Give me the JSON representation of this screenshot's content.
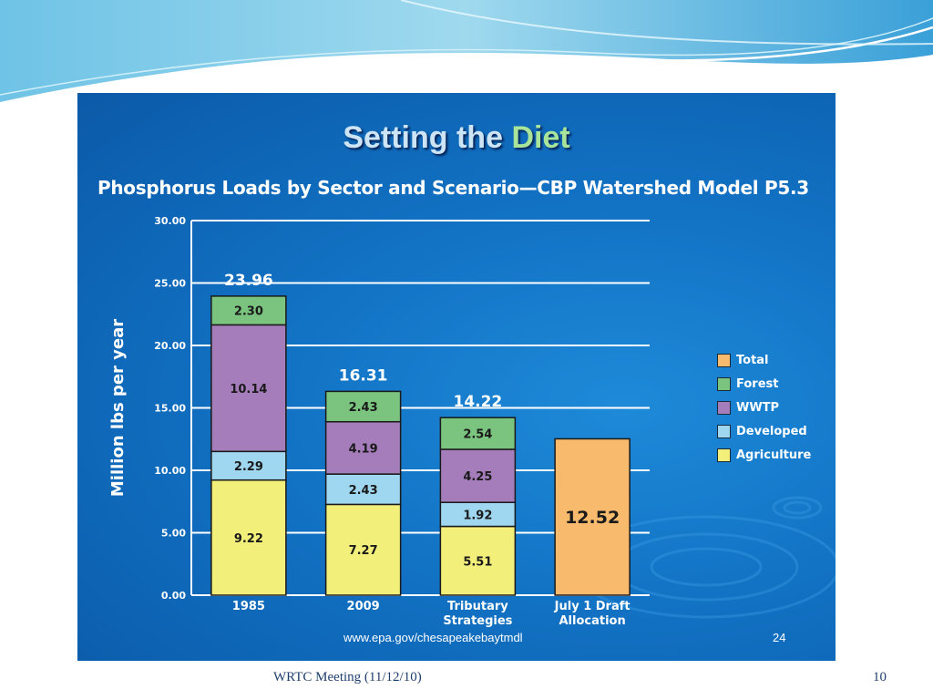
{
  "slide": {
    "title_prefix": "Setting the ",
    "title_accent": "Diet",
    "source_url": "www.epa.gov/chesapeakebaytmdl",
    "inner_page": "24",
    "footer": "WRTC Meeting  (11/12/10)",
    "slide_number": "10"
  },
  "chart_data": {
    "type": "bar",
    "stacked": true,
    "title": "Phosphorus Loads by Sector and Scenario—CBP Watershed Model P5.3",
    "xlabel": "",
    "ylabel": "Million lbs per year",
    "ylim": [
      0,
      30
    ],
    "yticks": [
      "0.00",
      "5.00",
      "10.00",
      "15.00",
      "20.00",
      "25.00",
      "30.00"
    ],
    "grid": true,
    "legend_position": "right",
    "categories": [
      [
        "1985"
      ],
      [
        "2009"
      ],
      [
        "Tributary",
        "Strategies"
      ],
      [
        "July 1 Draft",
        "Allocation"
      ]
    ],
    "totals": [
      "23.96",
      "16.31",
      "14.22",
      null
    ],
    "series": [
      {
        "name": "Agriculture",
        "color": "#f3ef7b",
        "values": [
          9.22,
          7.27,
          5.51,
          null
        ],
        "labels": [
          "9.22",
          "7.27",
          "5.51",
          null
        ]
      },
      {
        "name": "Developed",
        "color": "#9fd6f0",
        "values": [
          2.29,
          2.43,
          1.92,
          null
        ],
        "labels": [
          "2.29",
          "2.43",
          "1.92",
          null
        ]
      },
      {
        "name": "WWTP",
        "color": "#a57dba",
        "values": [
          10.14,
          4.19,
          4.25,
          null
        ],
        "labels": [
          "10.14",
          "4.19",
          "4.25",
          null
        ]
      },
      {
        "name": "Forest",
        "color": "#7bc47f",
        "values": [
          2.3,
          2.43,
          2.54,
          null
        ],
        "labels": [
          "2.30",
          "2.43",
          "2.54",
          null
        ]
      },
      {
        "name": "Total",
        "color": "#f8bb6e",
        "values": [
          null,
          null,
          null,
          12.52
        ],
        "labels": [
          null,
          null,
          null,
          "12.52"
        ]
      }
    ],
    "legend_order": [
      "Total",
      "Forest",
      "WWTP",
      "Developed",
      "Agriculture"
    ]
  }
}
